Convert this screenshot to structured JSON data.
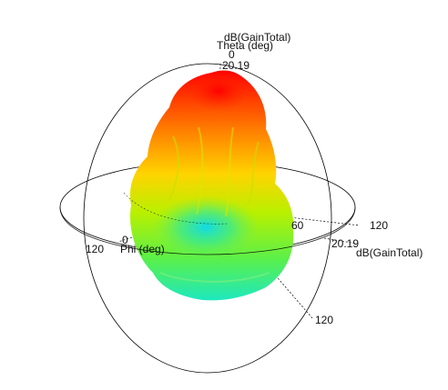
{
  "chart_data": {
    "type": "3d-radiation-pattern",
    "quantity": "dB(GainTotal)",
    "max_value": "20.19",
    "colormap": [
      "#ff0000",
      "#ff7a00",
      "#ffd400",
      "#b8f000",
      "#5af04a",
      "#1ee8c0"
    ],
    "axes": {
      "z": {
        "title": "dB(GainTotal)",
        "subtitle": "Theta (deg)",
        "tick_zero": "0",
        "tick_max": "20.19"
      },
      "x": {
        "title": "dB(GainTotal)",
        "tick_max": "20.19",
        "tick_120": "120",
        "tick_60": "60"
      },
      "phi": {
        "title": "Phi (deg)",
        "tick_zero": "0",
        "tick_120": "120"
      },
      "theta_ring": {
        "tick_120": "120"
      }
    }
  }
}
